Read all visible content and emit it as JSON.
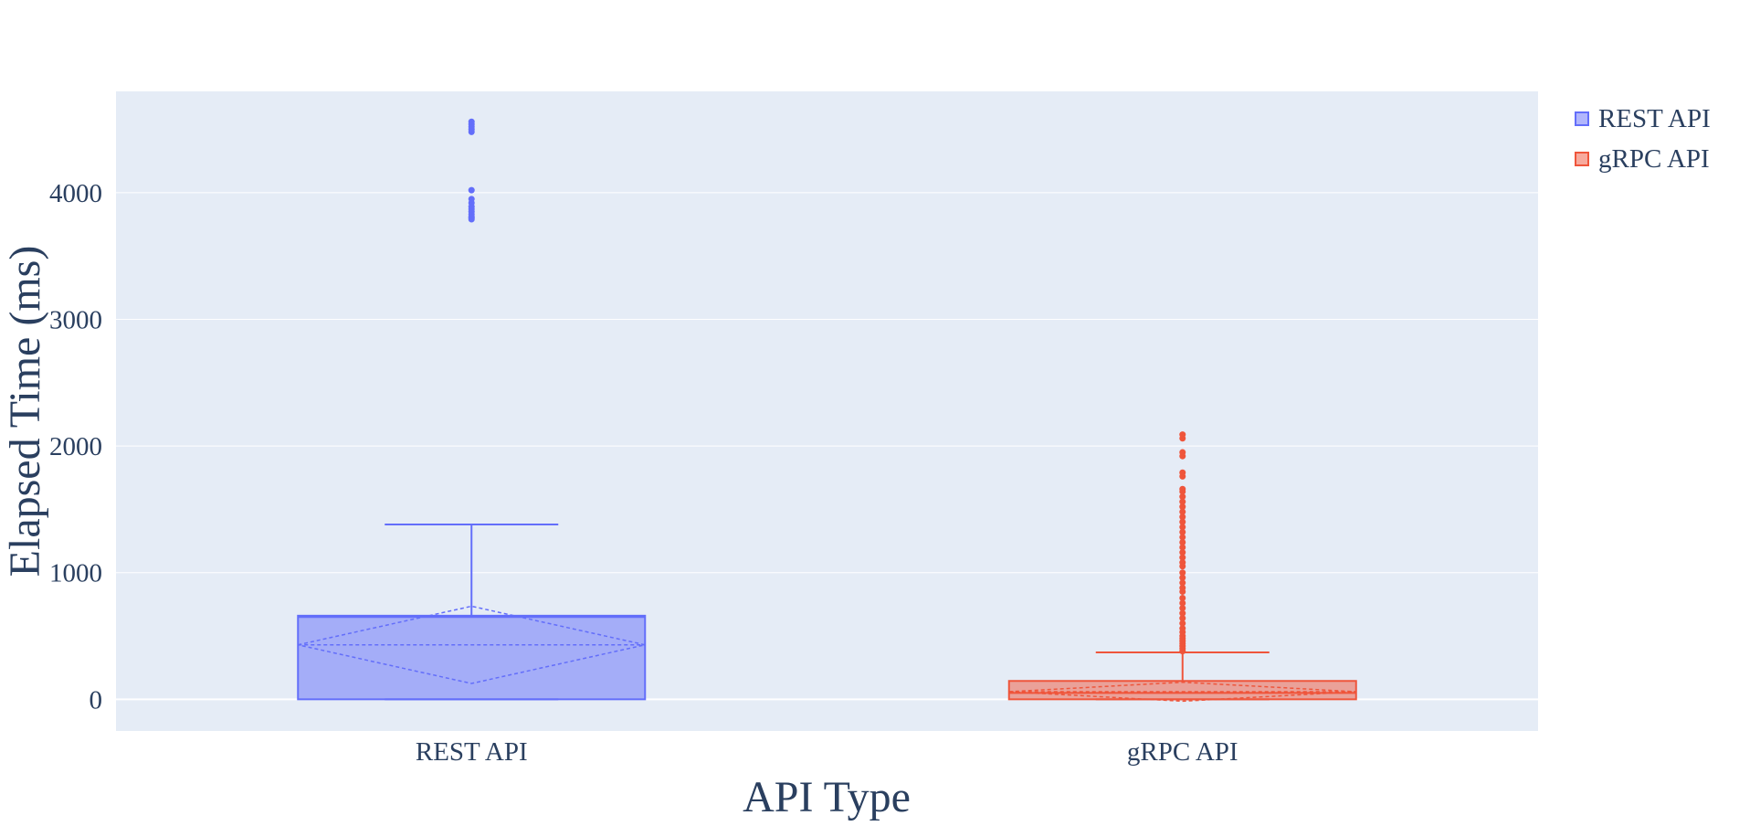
{
  "chart_data": {
    "type": "box",
    "title": "",
    "xlabel": "API Type",
    "ylabel": "Elapsed Time (ms)",
    "categories": [
      "REST API",
      "gRPC API"
    ],
    "ylim": [
      -250,
      4800
    ],
    "yticks": [
      0,
      1000,
      2000,
      3000,
      4000
    ],
    "legend_position": "top-right",
    "series": [
      {
        "name": "REST API",
        "category": "REST API",
        "color": "#636efa",
        "fill": "rgba(99,110,250,0.5)",
        "lowerfence": 0,
        "q1": 0,
        "median": 650,
        "q3": 660,
        "upperfence": 1380,
        "mean": 430,
        "sd": 305,
        "outliers": [
          3790,
          3800,
          3810,
          3830,
          3850,
          3870,
          3890,
          3920,
          3950,
          4020,
          4480,
          4500,
          4520,
          4540,
          4560
        ]
      },
      {
        "name": "gRPC API",
        "category": "gRPC API",
        "color": "#ef553b",
        "fill": "rgba(239,85,59,0.5)",
        "lowerfence": 0,
        "q1": 0,
        "median": 50,
        "q3": 145,
        "upperfence": 370,
        "mean": 60,
        "sd": 75,
        "outliers": [
          380,
          400,
          420,
          440,
          460,
          480,
          500,
          530,
          560,
          600,
          640,
          680,
          720,
          760,
          800,
          850,
          880,
          920,
          960,
          1000,
          1050,
          1080,
          1120,
          1160,
          1200,
          1240,
          1280,
          1320,
          1360,
          1400,
          1440,
          1480,
          1520,
          1560,
          1600,
          1640,
          1660,
          1760,
          1790,
          1920,
          1950,
          2060,
          2090
        ]
      }
    ]
  }
}
